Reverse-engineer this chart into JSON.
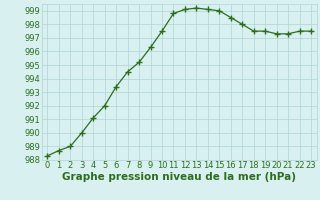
{
  "x": [
    0,
    1,
    2,
    3,
    4,
    5,
    6,
    7,
    8,
    9,
    10,
    11,
    12,
    13,
    14,
    15,
    16,
    17,
    18,
    19,
    20,
    21,
    22,
    23
  ],
  "y": [
    988.3,
    988.7,
    989.0,
    990.0,
    991.1,
    992.0,
    993.4,
    994.5,
    995.2,
    996.3,
    997.5,
    998.8,
    999.1,
    999.2,
    999.1,
    999.0,
    998.5,
    998.0,
    997.5,
    997.5,
    997.3,
    997.3,
    997.5,
    997.5
  ],
  "line_color": "#2d6e1e",
  "marker": "+",
  "markersize": 4,
  "markeredgewidth": 1.0,
  "linewidth": 0.9,
  "bg_color": "#d8f0f0",
  "grid_color": "#aed4d4",
  "xlabel": "Graphe pression niveau de la mer (hPa)",
  "ylim": [
    988,
    999.5
  ],
  "xlim": [
    -0.5,
    23.5
  ],
  "yticks": [
    988,
    989,
    990,
    991,
    992,
    993,
    994,
    995,
    996,
    997,
    998,
    999
  ],
  "xticks": [
    0,
    1,
    2,
    3,
    4,
    5,
    6,
    7,
    8,
    9,
    10,
    11,
    12,
    13,
    14,
    15,
    16,
    17,
    18,
    19,
    20,
    21,
    22,
    23
  ],
  "xlabel_fontsize": 7.5,
  "xlabel_fontweight": "bold",
  "tick_fontsize": 6.0,
  "tick_color": "#2d6e1e"
}
